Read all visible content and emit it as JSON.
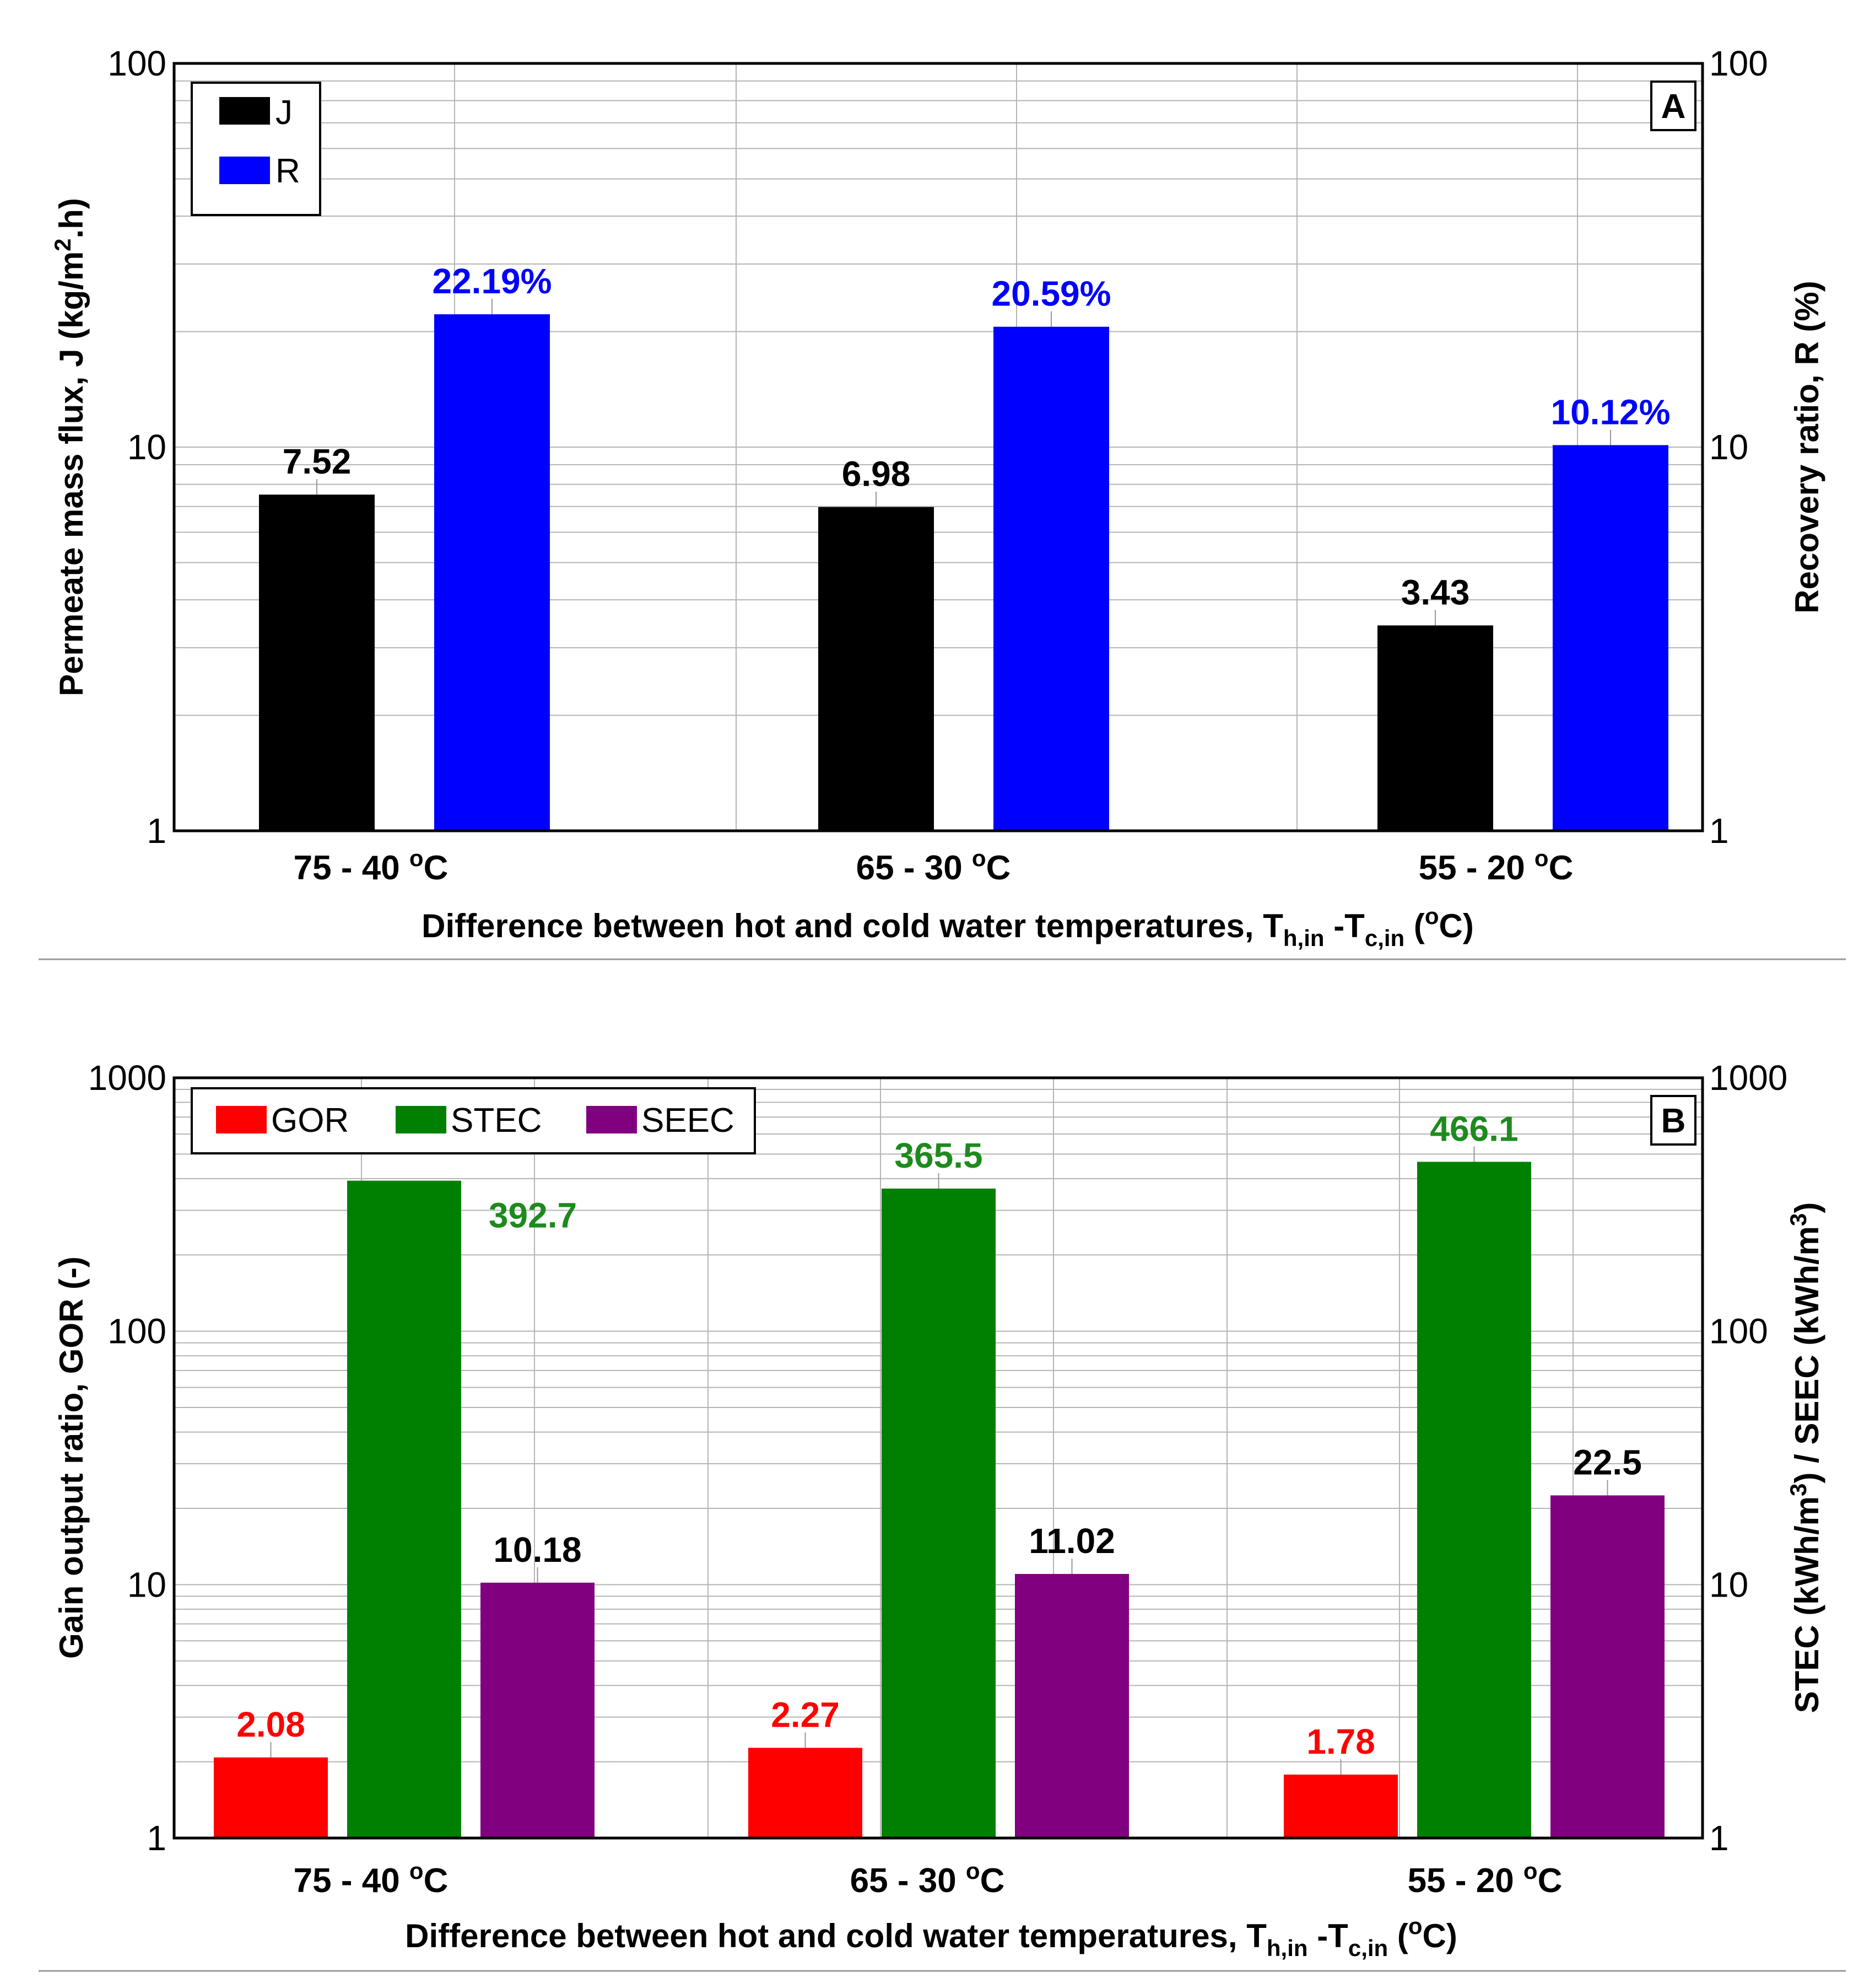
{
  "chart_data": [
    {
      "panel": "A",
      "type": "bar",
      "yscale": "log",
      "ylim": [
        1,
        100
      ],
      "y2lim": [
        1,
        100
      ],
      "grid": true,
      "legend_position": "top-left",
      "categories": [
        "75 - 40 °C",
        "65 - 30 °C",
        "55 - 20 °C"
      ],
      "series": [
        {
          "name": "J",
          "axis": "left",
          "color": "#000000",
          "values": [
            7.52,
            6.98,
            3.43
          ],
          "labels": [
            "7.52",
            "6.98",
            "3.43"
          ],
          "label_color": "#000000"
        },
        {
          "name": "R",
          "axis": "right",
          "color": "#0000FF",
          "values": [
            22.19,
            20.59,
            10.12
          ],
          "labels": [
            "22.19%",
            "20.59%",
            "10.12%"
          ],
          "label_color": "#0000FF"
        }
      ],
      "ylabel": {
        "text": "Permeate mass flux, J (kg/m",
        "sup": "2",
        "suffix": ".h)"
      },
      "y2label": "Recovery ratio, R (%)",
      "xlabel": {
        "text": "Difference between hot and cold water temperatures, T",
        "sub1": "h,in",
        "mid": " -T",
        "sub2": "c,in",
        "tail_open": " (",
        "sup": "o",
        "tail_close": "C)"
      },
      "yticks": [
        "1",
        "10",
        "100"
      ],
      "y2ticks": [
        "1",
        "10",
        "100"
      ]
    },
    {
      "panel": "B",
      "type": "bar",
      "yscale": "log",
      "ylim": [
        1,
        1000
      ],
      "y2lim": [
        1,
        1000
      ],
      "grid": true,
      "legend_position": "top-left",
      "categories": [
        "75 - 40 °C",
        "65 - 30 °C",
        "55 - 20 °C"
      ],
      "series": [
        {
          "name": "GOR",
          "axis": "left",
          "color": "#FF0000",
          "values": [
            2.08,
            2.27,
            1.78
          ],
          "labels": [
            "2.08",
            "2.27",
            "1.78"
          ],
          "label_color": "#FF0000"
        },
        {
          "name": "STEC",
          "axis": "right",
          "color": "#008000",
          "values": [
            392.7,
            365.5,
            466.1
          ],
          "labels": [
            "392.7",
            "365.5",
            "466.1"
          ],
          "label_color": "#1E8A1E"
        },
        {
          "name": "SEEC",
          "axis": "right",
          "color": "#800080",
          "values": [
            10.18,
            11.02,
            22.5
          ],
          "labels": [
            "10.18",
            "11.02",
            "22.5"
          ],
          "label_color": "#000000"
        }
      ],
      "ylabel": "Gain output ratio, GOR (-)",
      "y2label": {
        "a": "STEC (kWh/m",
        "sup1": "3",
        "b": ") / SEEC (kWh/m",
        "sup2": "3",
        "c": ")"
      },
      "xlabel": {
        "text": "Difference between hot and cold water temperatures, T",
        "sub1": "h,in",
        "mid": " -T",
        "sub2": "c,in",
        "tail_open": " (",
        "sup": "o",
        "tail_close": "C)"
      },
      "yticks": [
        "1",
        "10",
        "100",
        "1000"
      ],
      "y2ticks": [
        "1",
        "10",
        "100",
        "1000"
      ]
    }
  ],
  "panel_tags": [
    "A",
    "B"
  ],
  "category_labels": [
    {
      "pre": "75 - 40 ",
      "sup": "o",
      "post": "C"
    },
    {
      "pre": "65 - 30 ",
      "sup": "o",
      "post": "C"
    },
    {
      "pre": "55 - 20 ",
      "sup": "o",
      "post": "C"
    }
  ]
}
